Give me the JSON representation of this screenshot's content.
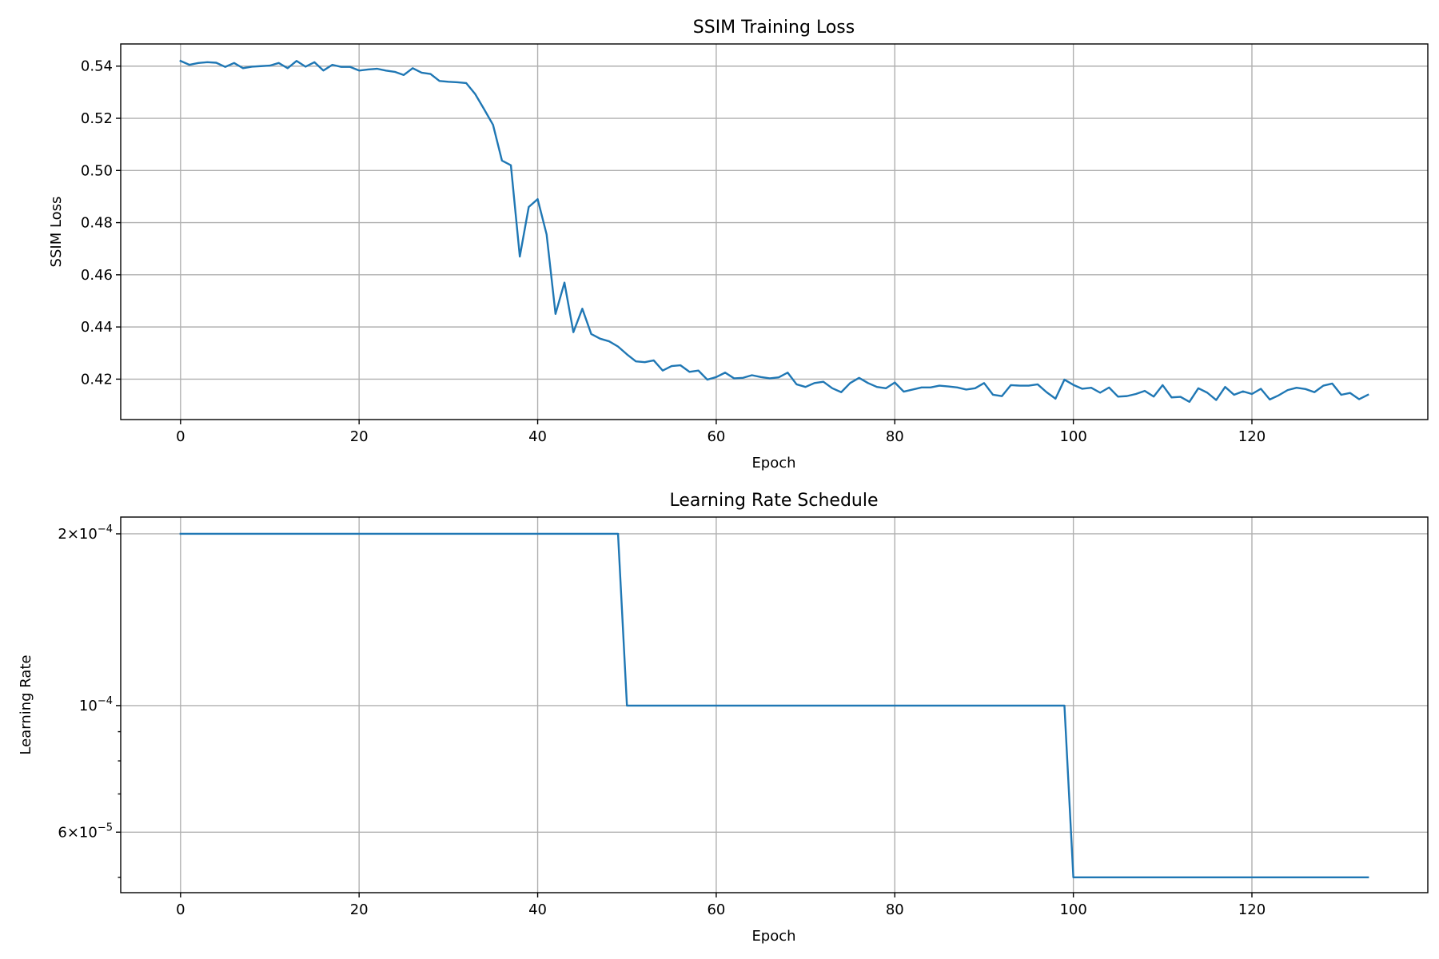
{
  "colors": {
    "series": "#1f77b4",
    "grid": "#b0b0b0"
  },
  "chart_data": [
    {
      "type": "line",
      "title": "SSIM Training Loss",
      "xlabel": "Epoch",
      "ylabel": "SSIM Loss",
      "xlim": [
        -6.7,
        139.7
      ],
      "ylim": [
        0.4045,
        0.5485
      ],
      "xticks": [
        0,
        20,
        40,
        60,
        80,
        100,
        120
      ],
      "yticks": [
        0.42,
        0.44,
        0.46,
        0.48,
        0.5,
        0.52,
        0.54
      ],
      "ytick_labels": [
        "0.42",
        "0.44",
        "0.46",
        "0.48",
        "0.50",
        "0.52",
        "0.54"
      ],
      "grid": true,
      "series": [
        {
          "x_start": 0,
          "values": [
            0.542,
            0.5405,
            0.5412,
            0.5415,
            0.5413,
            0.5397,
            0.5412,
            0.5392,
            0.5398,
            0.54,
            0.5402,
            0.5412,
            0.5392,
            0.542,
            0.5398,
            0.5415,
            0.5383,
            0.5405,
            0.5397,
            0.5397,
            0.5383,
            0.5387,
            0.539,
            0.5383,
            0.5378,
            0.5366,
            0.5392,
            0.5375,
            0.537,
            0.5343,
            0.534,
            0.5338,
            0.5335,
            0.5293,
            0.5235,
            0.5175,
            0.5038,
            0.502,
            0.467,
            0.486,
            0.489,
            0.4755,
            0.445,
            0.457,
            0.438,
            0.447,
            0.4373,
            0.4355,
            0.4345,
            0.4325,
            0.4295,
            0.4268,
            0.4265,
            0.4272,
            0.4233,
            0.425,
            0.4253,
            0.4228,
            0.4233,
            0.4198,
            0.4208,
            0.4225,
            0.4203,
            0.4205,
            0.4215,
            0.4208,
            0.4203,
            0.4207,
            0.4225,
            0.418,
            0.417,
            0.4185,
            0.419,
            0.4165,
            0.415,
            0.4185,
            0.4205,
            0.4185,
            0.417,
            0.4165,
            0.4187,
            0.4152,
            0.416,
            0.4168,
            0.4168,
            0.4175,
            0.4172,
            0.4168,
            0.416,
            0.4165,
            0.4185,
            0.414,
            0.4135,
            0.4177,
            0.4175,
            0.4175,
            0.418,
            0.415,
            0.4125,
            0.4198,
            0.4178,
            0.4163,
            0.4167,
            0.4148,
            0.4168,
            0.4133,
            0.4135,
            0.4143,
            0.4155,
            0.4133,
            0.4177,
            0.413,
            0.4132,
            0.4113,
            0.4165,
            0.4148,
            0.412,
            0.417,
            0.414,
            0.4153,
            0.4143,
            0.4163,
            0.4122,
            0.4138,
            0.4158,
            0.4167,
            0.4162,
            0.415,
            0.4175,
            0.4183,
            0.414,
            0.4147,
            0.4123,
            0.414
          ]
        }
      ]
    },
    {
      "type": "line",
      "title": "Learning Rate Schedule",
      "xlabel": "Epoch",
      "ylabel": "Learning Rate",
      "yscale": "log",
      "xlim": [
        -6.7,
        139.7
      ],
      "ylim": [
        4.7e-05,
        0.000214
      ],
      "xticks": [
        0,
        20,
        40,
        60,
        80,
        100,
        120
      ],
      "yticks_major": [
        0.0002,
        0.0001,
        6e-05
      ],
      "ytick_labels": [
        {
          "base": "2×10",
          "exp": "−4"
        },
        {
          "base": "10",
          "exp": "−4"
        },
        {
          "base": "6×10",
          "exp": "−5"
        }
      ],
      "yticks_minor": [
        5e-05,
        7e-05,
        8e-05,
        9e-05
      ],
      "grid": true,
      "series": [
        {
          "segments": [
            {
              "from": 0,
              "to": 49,
              "value": 0.0002
            },
            {
              "from": 50,
              "to": 99,
              "value": 0.0001
            },
            {
              "from": 100,
              "to": 133,
              "value": 5e-05
            }
          ]
        }
      ]
    }
  ]
}
